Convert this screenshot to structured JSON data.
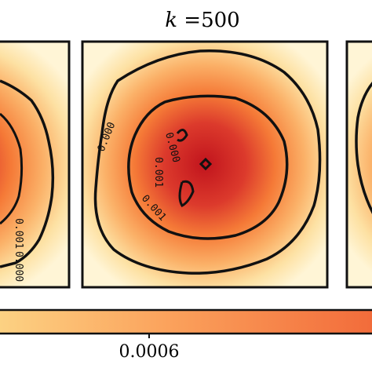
{
  "chart_data": {
    "type": "heatmap",
    "title": "k =500",
    "title_parts": {
      "variable": "k",
      "rest": " =500"
    },
    "colormap": "YlOrRd",
    "colors": {
      "low": "#fff5d6",
      "mid": "#f57a37",
      "high": "#c1141d"
    },
    "panels": [
      {
        "name": "left-panel",
        "position": "left",
        "cropped": true,
        "contour_labels": [
          "0.001",
          "0.000"
        ]
      },
      {
        "name": "center-panel",
        "position": "center",
        "cropped": false,
        "contour_labels": [
          "0.000",
          "0.000",
          "0.001",
          "0.001"
        ]
      },
      {
        "name": "right-panel",
        "position": "right",
        "cropped": true,
        "contour_labels": []
      }
    ],
    "contour_levels": [
      0.0005,
      0.001,
      0.0015,
      0.002
    ],
    "colorbar": {
      "orientation": "horizontal",
      "tick_labels": [
        "0.0006"
      ]
    }
  }
}
